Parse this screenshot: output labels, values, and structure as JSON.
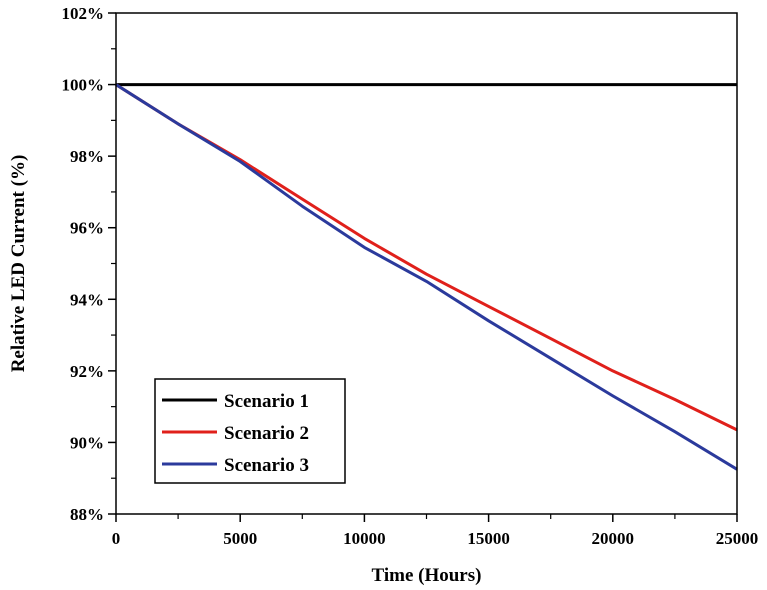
{
  "chart_data": {
    "type": "line",
    "title": "",
    "xlabel": "Time (Hours)",
    "ylabel": "Relative LED Current (%)",
    "xlim": [
      0,
      25000
    ],
    "ylim": [
      88,
      102
    ],
    "x_ticks": [
      0,
      5000,
      10000,
      15000,
      20000,
      25000
    ],
    "x_tick_labels": [
      "0",
      "5000",
      "10000",
      "15000",
      "20000",
      "25000"
    ],
    "y_ticks": [
      88,
      90,
      92,
      94,
      96,
      98,
      100,
      102
    ],
    "y_tick_labels": [
      "88%",
      "90%",
      "92%",
      "94%",
      "96%",
      "98%",
      "100%",
      "102%"
    ],
    "grid": false,
    "legend_position": "bottom-left",
    "series": [
      {
        "name": "Scenario 1",
        "color": "#000000",
        "x": [
          0,
          5000,
          10000,
          15000,
          20000,
          25000
        ],
        "y": [
          100,
          100,
          100,
          100,
          100,
          100
        ]
      },
      {
        "name": "Scenario 2",
        "color": "#e0201b",
        "x": [
          0,
          2500,
          5000,
          7500,
          10000,
          12500,
          15000,
          17500,
          20000,
          22500,
          25000
        ],
        "y": [
          100,
          98.9,
          97.9,
          96.8,
          95.7,
          94.7,
          93.8,
          92.9,
          92.0,
          91.2,
          90.35
        ]
      },
      {
        "name": "Scenario 3",
        "color": "#2b3a9c",
        "x": [
          0,
          2500,
          5000,
          7500,
          10000,
          12500,
          15000,
          17500,
          20000,
          22500,
          25000
        ],
        "y": [
          100,
          98.9,
          97.85,
          96.6,
          95.45,
          94.5,
          93.4,
          92.35,
          91.3,
          90.3,
          89.25
        ]
      }
    ]
  }
}
